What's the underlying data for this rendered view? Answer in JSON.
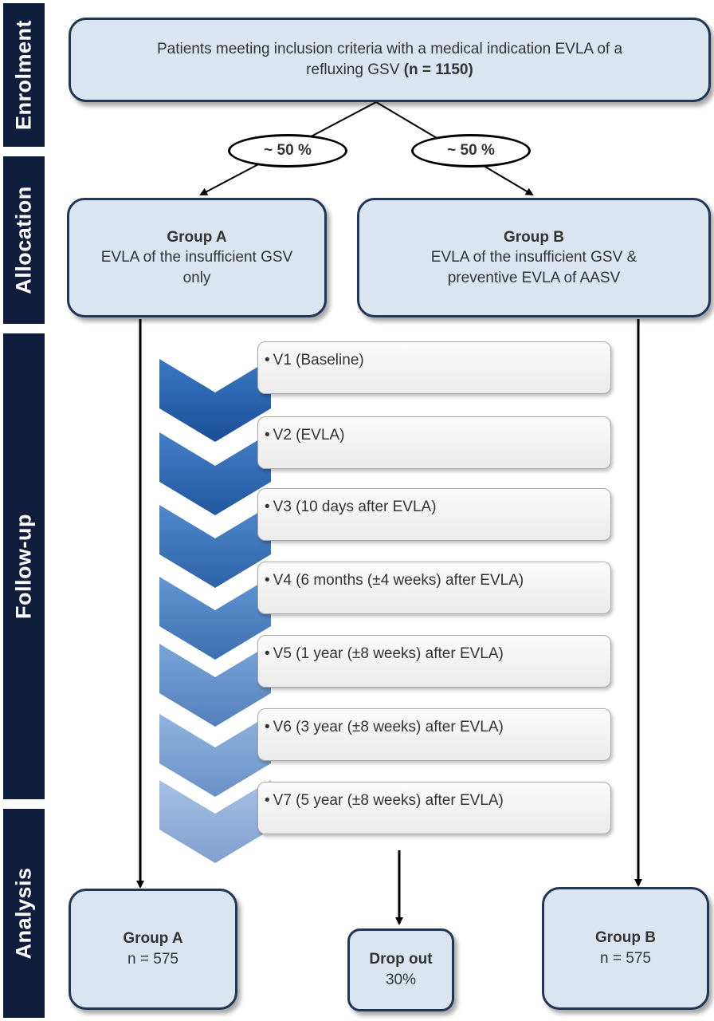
{
  "phases": {
    "enrolment": "Enrolment",
    "allocation": "Allocation",
    "followup": "Follow-up",
    "analysis": "Analysis"
  },
  "enrolment_box": {
    "line1": "Patients meeting inclusion criteria with a medical indication EVLA of a",
    "line2_text": "refluxing GSV ",
    "line2_bold": "(n = 1150)"
  },
  "split": {
    "left": "~ 50 %",
    "right": "~ 50 %"
  },
  "group_a_alloc": {
    "title": "Group A",
    "line1": "EVLA of the insufficient GSV",
    "line2": "only"
  },
  "group_b_alloc": {
    "title": "Group B",
    "line1": "EVLA of the insufficient GSV &",
    "line2": "preventive EVLA of AASV"
  },
  "bullet": "•",
  "visits": [
    "V1 (Baseline)",
    "V2 (EVLA)",
    "V3 (10 days after EVLA)",
    "V4 (6 months (±4 weeks) after EVLA)",
    "V5 (1 year (±8  weeks) after EVLA)",
    "V6 (3 year (±8  weeks) after EVLA)",
    "V7 (5 year (±8  weeks) after EVLA)"
  ],
  "analysis": {
    "group_a": {
      "title": "Group A",
      "n": "n = 575"
    },
    "dropout": {
      "title": "Drop out",
      "value": "30%"
    },
    "group_b": {
      "title": "Group B",
      "n": "n = 575"
    }
  },
  "colors": {
    "phase_bar": "#0f1e3d",
    "box_fill": "#dbe5f1",
    "box_border": "#1f3657",
    "chevron_dark": "#1f5ba8",
    "chevron_light": "#a9bde0"
  }
}
